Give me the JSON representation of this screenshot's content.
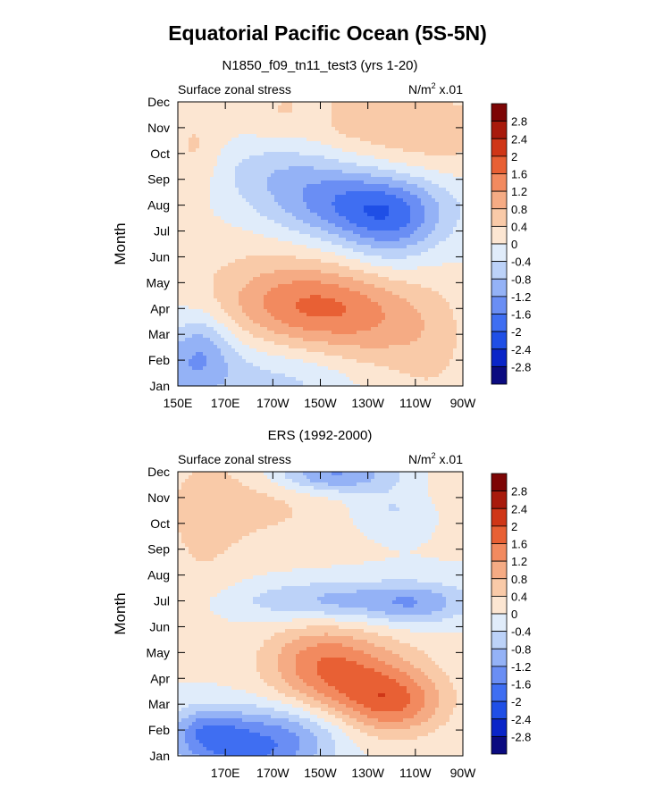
{
  "figure": {
    "title": "Equatorial Pacific Ocean (5S-5N)"
  },
  "chart_data": [
    {
      "type": "heatmap",
      "subtitle": "N1850_f09_tn11_test3 (yrs 1-20)",
      "left_label": "Surface zonal stress",
      "right_label_main": "N/m",
      "right_label_sup": "2",
      "right_label_tail": " x.01",
      "ylabel": "Month",
      "xlabel": "",
      "x_ticks": [
        {
          "value": 150,
          "label": "150E"
        },
        {
          "value": 170,
          "label": "170E"
        },
        {
          "value": 190,
          "label": "170W"
        },
        {
          "value": 210,
          "label": "150W"
        },
        {
          "value": 230,
          "label": "130W"
        },
        {
          "value": 250,
          "label": "110W"
        },
        {
          "value": 270,
          "label": "90W"
        }
      ],
      "x_range": [
        150,
        270
      ],
      "months": [
        "Jan",
        "Feb",
        "Mar",
        "Apr",
        "May",
        "Jun",
        "Jul",
        "Aug",
        "Sep",
        "Oct",
        "Nov",
        "Dec"
      ],
      "levels": [
        -2.8,
        -2.4,
        -2,
        -1.6,
        -1.2,
        -0.8,
        -0.4,
        0,
        0.4,
        0.8,
        1.2,
        1.6,
        2,
        2.4,
        2.8
      ],
      "features": [
        {
          "lon": 155,
          "month": 0.6,
          "sx": 18,
          "sy": 1.1,
          "amp": -0.95
        },
        {
          "lon": 160,
          "month": 1.7,
          "sx": 8,
          "sy": 0.9,
          "amp": -0.55
        },
        {
          "lon": 200,
          "month": 0.2,
          "sx": 18,
          "sy": 0.8,
          "amp": -0.45
        },
        {
          "lon": 205,
          "month": 3.1,
          "sx": 24,
          "sy": 1.1,
          "amp": 1.5
        },
        {
          "lon": 235,
          "month": 2.2,
          "sx": 18,
          "sy": 1.3,
          "amp": 0.6
        },
        {
          "lon": 258,
          "month": 1.4,
          "sx": 12,
          "sy": 2.0,
          "amp": 0.35
        },
        {
          "lon": 225,
          "month": 7.0,
          "sx": 26,
          "sy": 1.0,
          "amp": -1.5
        },
        {
          "lon": 240,
          "month": 6.2,
          "sx": 14,
          "sy": 1.1,
          "amp": -0.9
        },
        {
          "lon": 195,
          "month": 8.4,
          "sx": 22,
          "sy": 0.9,
          "amp": -0.6
        },
        {
          "lon": 252,
          "month": 9.8,
          "sx": 28,
          "sy": 1.3,
          "amp": 0.65
        },
        {
          "lon": 157,
          "month": 9.0,
          "sx": 8,
          "sy": 1.2,
          "amp": 0.5
        },
        {
          "lon": 205,
          "month": 10.7,
          "sx": 22,
          "sy": 1.0,
          "amp": 0.45
        },
        {
          "lon": 180,
          "month": 4.9,
          "sx": 25,
          "sy": 1.4,
          "amp": 0.25
        },
        {
          "lon": 208,
          "month": 10.6,
          "sx": 6,
          "sy": 0.7,
          "amp": -0.35
        }
      ]
    },
    {
      "type": "heatmap",
      "subtitle": "ERS (1992-2000)",
      "left_label": "Surface zonal stress",
      "right_label_main": "N/m",
      "right_label_sup": "2",
      "right_label_tail": " x.01",
      "ylabel": "Month",
      "xlabel": "",
      "x_ticks": [
        {
          "value": 170,
          "label": "170E"
        },
        {
          "value": 190,
          "label": "170W"
        },
        {
          "value": 210,
          "label": "150W"
        },
        {
          "value": 230,
          "label": "130W"
        },
        {
          "value": 250,
          "label": "110W"
        },
        {
          "value": 270,
          "label": "90W"
        }
      ],
      "x_range": [
        150,
        270
      ],
      "months": [
        "Jan",
        "Feb",
        "Mar",
        "Apr",
        "May",
        "Jun",
        "Jul",
        "Aug",
        "Sep",
        "Oct",
        "Nov",
        "Dec"
      ],
      "levels": [
        -2.8,
        -2.4,
        -2,
        -1.6,
        -1.2,
        -0.8,
        -0.4,
        0,
        0.4,
        0.8,
        1.2,
        1.6,
        2,
        2.4,
        2.8
      ],
      "features": [
        {
          "lon": 180,
          "month": 0.2,
          "sx": 22,
          "sy": 1.0,
          "amp": -1.6
        },
        {
          "lon": 162,
          "month": 1.0,
          "sx": 10,
          "sy": 0.6,
          "amp": -0.9
        },
        {
          "lon": 205,
          "month": 1.2,
          "sx": 20,
          "sy": 0.8,
          "amp": -0.7
        },
        {
          "lon": 225,
          "month": 2.6,
          "sx": 22,
          "sy": 1.3,
          "amp": 1.5
        },
        {
          "lon": 242,
          "month": 2.0,
          "sx": 14,
          "sy": 0.8,
          "amp": 0.9
        },
        {
          "lon": 208,
          "month": 3.9,
          "sx": 16,
          "sy": 0.9,
          "amp": 0.8
        },
        {
          "lon": 225,
          "month": 6.0,
          "sx": 35,
          "sy": 0.55,
          "amp": -1.0
        },
        {
          "lon": 250,
          "month": 5.8,
          "sx": 12,
          "sy": 0.6,
          "amp": -0.5
        },
        {
          "lon": 215,
          "month": 10.9,
          "sx": 18,
          "sy": 0.5,
          "amp": -1.4
        },
        {
          "lon": 185,
          "month": 9.9,
          "sx": 26,
          "sy": 1.4,
          "amp": 0.5
        },
        {
          "lon": 240,
          "month": 9.5,
          "sx": 12,
          "sy": 0.6,
          "amp": -0.45
        },
        {
          "lon": 160,
          "month": 8.5,
          "sx": 12,
          "sy": 2.5,
          "amp": 0.35
        },
        {
          "lon": 263,
          "month": 10.5,
          "sx": 8,
          "sy": 1.2,
          "amp": 0.2
        }
      ]
    }
  ],
  "colorbar": {
    "labels": [
      "2.8",
      "2.4",
      "2",
      "1.6",
      "1.2",
      "0.8",
      "0.4",
      "0",
      "-0.4",
      "-0.8",
      "-1.2",
      "-1.6",
      "-2",
      "-2.4",
      "-2.8"
    ],
    "colors": [
      "#0b0b80",
      "#0a25c8",
      "#1f4fe6",
      "#3f6ef2",
      "#6a8ef4",
      "#94b2f6",
      "#bcd2f8",
      "#e0ecfa",
      "#fce6d2",
      "#f9caa8",
      "#f5ab84",
      "#f28a5f",
      "#e86034",
      "#cf3617",
      "#a81a0c",
      "#7d0505"
    ]
  }
}
